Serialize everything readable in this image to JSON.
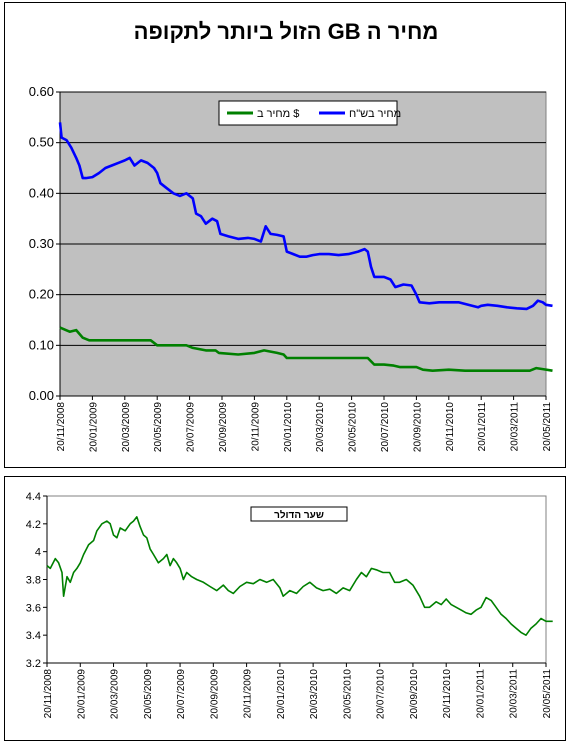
{
  "chart_data": [
    {
      "type": "line",
      "title": "מחיר ה GB הזול ביותר לתקופה",
      "xlabel": "",
      "ylabel": "",
      "ylim": [
        0,
        0.6
      ],
      "yticks": [
        "0.00",
        "0.10",
        "0.20",
        "0.30",
        "0.40",
        "0.50",
        "0.60"
      ],
      "grid": true,
      "legend_position": "top-center",
      "x_tick_labels": [
        "20/11/2008",
        "20/01/2009",
        "20/03/2009",
        "20/05/2009",
        "20/07/2009",
        "20/09/2009",
        "20/11/2009",
        "20/01/2010",
        "20/03/2010",
        "20/05/2010",
        "20/07/2010",
        "20/09/2010",
        "20/11/2010",
        "20/01/2011",
        "20/03/2011",
        "20/05/2011"
      ],
      "colors": {
        "plot_bg": "#c0c0c0",
        "blue": "#0000ff",
        "green": "#008000"
      },
      "series": [
        {
          "name": "מחיר בש\"ח",
          "color": "#0000ff",
          "points": [
            [
              0,
              0.54
            ],
            [
              0.05,
              0.51
            ],
            [
              0.2,
              0.505
            ],
            [
              0.35,
              0.49
            ],
            [
              0.5,
              0.47
            ],
            [
              0.6,
              0.455
            ],
            [
              0.7,
              0.43
            ],
            [
              0.8,
              0.43
            ],
            [
              1.0,
              0.432
            ],
            [
              1.2,
              0.44
            ],
            [
              1.4,
              0.45
            ],
            [
              1.6,
              0.455
            ],
            [
              1.8,
              0.46
            ],
            [
              2.0,
              0.465
            ],
            [
              2.15,
              0.47
            ],
            [
              2.3,
              0.455
            ],
            [
              2.5,
              0.465
            ],
            [
              2.7,
              0.46
            ],
            [
              2.9,
              0.45
            ],
            [
              3.0,
              0.44
            ],
            [
              3.1,
              0.42
            ],
            [
              3.3,
              0.41
            ],
            [
              3.5,
              0.4
            ],
            [
              3.7,
              0.395
            ],
            [
              3.9,
              0.4
            ],
            [
              4.1,
              0.39
            ],
            [
              4.2,
              0.36
            ],
            [
              4.35,
              0.355
            ],
            [
              4.5,
              0.34
            ],
            [
              4.7,
              0.35
            ],
            [
              4.85,
              0.345
            ],
            [
              4.95,
              0.32
            ],
            [
              5.2,
              0.315
            ],
            [
              5.5,
              0.31
            ],
            [
              5.8,
              0.312
            ],
            [
              6.0,
              0.31
            ],
            [
              6.2,
              0.305
            ],
            [
              6.35,
              0.335
            ],
            [
              6.5,
              0.32
            ],
            [
              6.7,
              0.318
            ],
            [
              6.9,
              0.315
            ],
            [
              7.0,
              0.285
            ],
            [
              7.2,
              0.28
            ],
            [
              7.4,
              0.275
            ],
            [
              7.6,
              0.275
            ],
            [
              7.8,
              0.278
            ],
            [
              8.0,
              0.28
            ],
            [
              8.3,
              0.28
            ],
            [
              8.6,
              0.278
            ],
            [
              8.9,
              0.28
            ],
            [
              9.2,
              0.285
            ],
            [
              9.4,
              0.29
            ],
            [
              9.5,
              0.285
            ],
            [
              9.6,
              0.255
            ],
            [
              9.7,
              0.235
            ],
            [
              10.0,
              0.235
            ],
            [
              10.2,
              0.23
            ],
            [
              10.35,
              0.215
            ],
            [
              10.6,
              0.22
            ],
            [
              10.85,
              0.218
            ],
            [
              11.0,
              0.2
            ],
            [
              11.1,
              0.185
            ],
            [
              11.4,
              0.183
            ],
            [
              11.7,
              0.185
            ],
            [
              12.0,
              0.185
            ],
            [
              12.3,
              0.185
            ],
            [
              12.6,
              0.18
            ],
            [
              12.9,
              0.175
            ],
            [
              13.0,
              0.178
            ],
            [
              13.2,
              0.18
            ],
            [
              13.5,
              0.178
            ],
            [
              13.8,
              0.175
            ],
            [
              14.1,
              0.173
            ],
            [
              14.4,
              0.172
            ],
            [
              14.6,
              0.178
            ],
            [
              14.75,
              0.188
            ],
            [
              14.9,
              0.185
            ],
            [
              15.0,
              0.18
            ],
            [
              15.2,
              0.178
            ]
          ]
        },
        {
          "name": "מחיר ב $",
          "color": "#008000",
          "points": [
            [
              0,
              0.135
            ],
            [
              0.3,
              0.127
            ],
            [
              0.5,
              0.13
            ],
            [
              0.7,
              0.115
            ],
            [
              0.9,
              0.11
            ],
            [
              1.2,
              0.11
            ],
            [
              1.5,
              0.11
            ],
            [
              2.0,
              0.11
            ],
            [
              2.5,
              0.11
            ],
            [
              2.8,
              0.11
            ],
            [
              3.0,
              0.1
            ],
            [
              3.5,
              0.1
            ],
            [
              3.9,
              0.1
            ],
            [
              4.1,
              0.095
            ],
            [
              4.5,
              0.09
            ],
            [
              4.8,
              0.09
            ],
            [
              4.9,
              0.085
            ],
            [
              5.5,
              0.082
            ],
            [
              6.0,
              0.085
            ],
            [
              6.3,
              0.09
            ],
            [
              6.7,
              0.085
            ],
            [
              6.9,
              0.082
            ],
            [
              7.0,
              0.075
            ],
            [
              7.5,
              0.075
            ],
            [
              8.0,
              0.075
            ],
            [
              8.5,
              0.075
            ],
            [
              9.0,
              0.075
            ],
            [
              9.5,
              0.075
            ],
            [
              9.7,
              0.062
            ],
            [
              10.0,
              0.062
            ],
            [
              10.3,
              0.06
            ],
            [
              10.5,
              0.057
            ],
            [
              11.0,
              0.057
            ],
            [
              11.2,
              0.052
            ],
            [
              11.5,
              0.05
            ],
            [
              12.0,
              0.052
            ],
            [
              12.5,
              0.05
            ],
            [
              13.0,
              0.05
            ],
            [
              13.5,
              0.05
            ],
            [
              14.0,
              0.05
            ],
            [
              14.5,
              0.05
            ],
            [
              14.7,
              0.055
            ],
            [
              14.9,
              0.053
            ],
            [
              15.2,
              0.05
            ]
          ]
        }
      ]
    },
    {
      "type": "line",
      "title": "",
      "xlabel": "",
      "ylabel": "",
      "ylim": [
        3.2,
        4.4
      ],
      "yticks": [
        "3.2",
        "3.4",
        "3.6",
        "3.8",
        "4",
        "4.2",
        "4.4"
      ],
      "grid": false,
      "legend_position": "top-center",
      "x_tick_labels": [
        "20/11/2008",
        "20/01/2009",
        "20/03/2009",
        "20/05/2009",
        "20/07/2009",
        "20/09/2009",
        "20/11/2009",
        "20/01/2010",
        "20/03/2010",
        "20/05/2010",
        "20/07/2010",
        "20/09/2010",
        "20/11/2010",
        "20/01/2011",
        "20/03/2011",
        "20/05/2011"
      ],
      "colors": {
        "line": "#008000"
      },
      "series": [
        {
          "name": "שער הדולר",
          "color": "#008000",
          "points": [
            [
              0,
              3.9
            ],
            [
              0.1,
              3.88
            ],
            [
              0.25,
              3.95
            ],
            [
              0.35,
              3.92
            ],
            [
              0.45,
              3.85
            ],
            [
              0.5,
              3.68
            ],
            [
              0.55,
              3.75
            ],
            [
              0.6,
              3.82
            ],
            [
              0.7,
              3.78
            ],
            [
              0.8,
              3.85
            ],
            [
              0.9,
              3.88
            ],
            [
              1.0,
              3.92
            ],
            [
              1.1,
              3.98
            ],
            [
              1.25,
              4.05
            ],
            [
              1.4,
              4.08
            ],
            [
              1.5,
              4.15
            ],
            [
              1.65,
              4.2
            ],
            [
              1.8,
              4.22
            ],
            [
              1.9,
              4.2
            ],
            [
              2.0,
              4.12
            ],
            [
              2.1,
              4.1
            ],
            [
              2.2,
              4.17
            ],
            [
              2.35,
              4.15
            ],
            [
              2.5,
              4.2
            ],
            [
              2.6,
              4.22
            ],
            [
              2.7,
              4.25
            ],
            [
              2.8,
              4.18
            ],
            [
              2.9,
              4.12
            ],
            [
              3.0,
              4.1
            ],
            [
              3.1,
              4.02
            ],
            [
              3.2,
              3.98
            ],
            [
              3.35,
              3.92
            ],
            [
              3.5,
              3.95
            ],
            [
              3.6,
              3.98
            ],
            [
              3.7,
              3.9
            ],
            [
              3.8,
              3.95
            ],
            [
              3.9,
              3.92
            ],
            [
              4.0,
              3.88
            ],
            [
              4.1,
              3.8
            ],
            [
              4.2,
              3.85
            ],
            [
              4.35,
              3.82
            ],
            [
              4.5,
              3.8
            ],
            [
              4.7,
              3.78
            ],
            [
              4.9,
              3.75
            ],
            [
              5.1,
              3.72
            ],
            [
              5.3,
              3.76
            ],
            [
              5.45,
              3.72
            ],
            [
              5.6,
              3.7
            ],
            [
              5.8,
              3.75
            ],
            [
              6.0,
              3.78
            ],
            [
              6.2,
              3.77
            ],
            [
              6.4,
              3.8
            ],
            [
              6.6,
              3.78
            ],
            [
              6.8,
              3.8
            ],
            [
              7.0,
              3.74
            ],
            [
              7.1,
              3.68
            ],
            [
              7.3,
              3.72
            ],
            [
              7.5,
              3.7
            ],
            [
              7.7,
              3.75
            ],
            [
              7.9,
              3.78
            ],
            [
              8.1,
              3.74
            ],
            [
              8.3,
              3.72
            ],
            [
              8.5,
              3.73
            ],
            [
              8.7,
              3.7
            ],
            [
              8.9,
              3.74
            ],
            [
              9.1,
              3.72
            ],
            [
              9.3,
              3.8
            ],
            [
              9.45,
              3.85
            ],
            [
              9.6,
              3.82
            ],
            [
              9.75,
              3.88
            ],
            [
              9.9,
              3.87
            ],
            [
              10.1,
              3.85
            ],
            [
              10.3,
              3.85
            ],
            [
              10.45,
              3.78
            ],
            [
              10.6,
              3.78
            ],
            [
              10.8,
              3.8
            ],
            [
              11.0,
              3.76
            ],
            [
              11.2,
              3.68
            ],
            [
              11.35,
              3.6
            ],
            [
              11.5,
              3.6
            ],
            [
              11.7,
              3.64
            ],
            [
              11.85,
              3.62
            ],
            [
              12.0,
              3.66
            ],
            [
              12.15,
              3.62
            ],
            [
              12.3,
              3.6
            ],
            [
              12.45,
              3.58
            ],
            [
              12.6,
              3.56
            ],
            [
              12.75,
              3.55
            ],
            [
              12.9,
              3.58
            ],
            [
              13.05,
              3.6
            ],
            [
              13.2,
              3.67
            ],
            [
              13.35,
              3.65
            ],
            [
              13.5,
              3.6
            ],
            [
              13.65,
              3.55
            ],
            [
              13.8,
              3.52
            ],
            [
              13.95,
              3.48
            ],
            [
              14.1,
              3.45
            ],
            [
              14.25,
              3.42
            ],
            [
              14.4,
              3.4
            ],
            [
              14.55,
              3.45
            ],
            [
              14.7,
              3.48
            ],
            [
              14.85,
              3.52
            ],
            [
              15.0,
              3.5
            ],
            [
              15.2,
              3.5
            ]
          ]
        }
      ]
    }
  ]
}
